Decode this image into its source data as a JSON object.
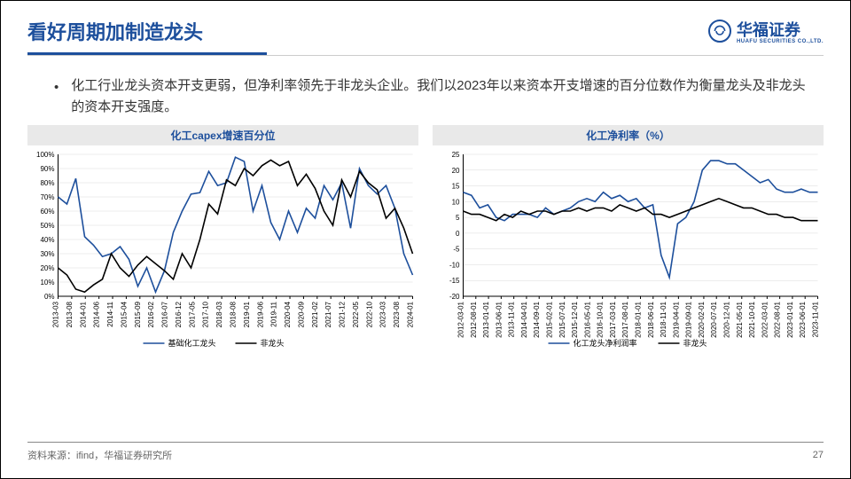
{
  "header": {
    "title": "看好周期加制造龙头",
    "logo_text": "华福证券",
    "logo_sub": "HUAFU SECURITIES CO.,LTD."
  },
  "bullet": {
    "dot": "•",
    "text": "化工行业龙头资本开支更弱，但净利率领先于非龙头企业。我们以2023年以来资本开支增速的百分位数作为衡量龙头及非龙头的资本开支强度。"
  },
  "chart1": {
    "type": "line",
    "title": "化工capex增速百分位",
    "ylabel_suffix": "%",
    "ylim": [
      0,
      100
    ],
    "ytick_step": 10,
    "x_labels": [
      "2013-03",
      "2013-08",
      "2014-01",
      "2014-06",
      "2014-11",
      "2015-04",
      "2015-09",
      "2016-02",
      "2016-07",
      "2016-12",
      "2017-05",
      "2017-10",
      "2018-03",
      "2018-08",
      "2019-01",
      "2019-06",
      "2019-11",
      "2020-04",
      "2020-09",
      "2021-02",
      "2021-07",
      "2021-12",
      "2022-05",
      "2022-10",
      "2023-03",
      "2023-08",
      "2024-01"
    ],
    "series": [
      {
        "name": "基础化工龙头",
        "color": "#1d4f9c",
        "width": 1.6,
        "values": [
          70,
          65,
          83,
          42,
          36,
          28,
          30,
          35,
          26,
          7,
          20,
          3,
          18,
          45,
          60,
          72,
          73,
          88,
          78,
          80,
          98,
          95,
          60,
          78,
          52,
          40,
          60,
          45,
          62,
          55,
          78,
          68,
          80,
          48,
          90,
          78,
          72,
          78,
          62,
          30,
          15
        ]
      },
      {
        "name": "非龙头",
        "color": "#000000",
        "width": 1.6,
        "values": [
          20,
          15,
          5,
          3,
          8,
          12,
          30,
          20,
          14,
          22,
          28,
          23,
          18,
          12,
          30,
          20,
          40,
          65,
          58,
          82,
          78,
          90,
          85,
          92,
          96,
          92,
          95,
          78,
          86,
          76,
          60,
          50,
          82,
          70,
          88,
          80,
          75,
          55,
          62,
          48,
          30
        ]
      }
    ],
    "legend": [
      "基础化工龙头",
      "非龙头"
    ],
    "title_fontsize": 12,
    "label_fontsize": 8,
    "background_color": "#ffffff",
    "grid_color": "#d9d9d9"
  },
  "chart2": {
    "type": "line",
    "title": "化工净利率（%）",
    "ylim": [
      -20,
      25
    ],
    "ytick_step": 5,
    "x_labels": [
      "2012-03-01",
      "2012-08-01",
      "2013-01-01",
      "2013-06-01",
      "2013-11-01",
      "2014-04-01",
      "2014-09-01",
      "2015-02-01",
      "2015-07-01",
      "2015-12-01",
      "2016-05-01",
      "2016-10-01",
      "2017-03-01",
      "2017-08-01",
      "2018-01-01",
      "2018-06-01",
      "2018-11-01",
      "2019-04-01",
      "2019-09-01",
      "2020-02-01",
      "2020-07-01",
      "2020-12-01",
      "2021-05-01",
      "2021-10-01",
      "2022-03-01",
      "2022-08-01",
      "2023-01-01",
      "2023-06-01",
      "2023-11-01"
    ],
    "series": [
      {
        "name": "化工龙头净利润率",
        "color": "#1d4f9c",
        "width": 1.6,
        "values": [
          13,
          12,
          8,
          9,
          5,
          4,
          6,
          6,
          6,
          5,
          8,
          6,
          7,
          8,
          10,
          11,
          10,
          13,
          11,
          12,
          10,
          11,
          8,
          9,
          -7,
          -14,
          3,
          5,
          10,
          20,
          23,
          23,
          22,
          22,
          20,
          18,
          16,
          17,
          14,
          13,
          13,
          14,
          13,
          13
        ]
      },
      {
        "name": "非龙头",
        "color": "#000000",
        "width": 1.6,
        "values": [
          7,
          6,
          6,
          5,
          4,
          6,
          5,
          7,
          6,
          7,
          7,
          6,
          7,
          7,
          8,
          7,
          8,
          8,
          7,
          9,
          8,
          7,
          8,
          6,
          6,
          5,
          6,
          7,
          8,
          9,
          10,
          11,
          10,
          9,
          8,
          8,
          7,
          6,
          6,
          5,
          5,
          4,
          4,
          4
        ]
      }
    ],
    "legend": [
      "化工龙头净利润率",
      "非龙头"
    ],
    "title_fontsize": 12,
    "label_fontsize": 8,
    "background_color": "#ffffff",
    "grid_color": "#d9d9d9"
  },
  "footer": {
    "source": "资料来源：ifind，华福证券研究所",
    "page": "27"
  }
}
